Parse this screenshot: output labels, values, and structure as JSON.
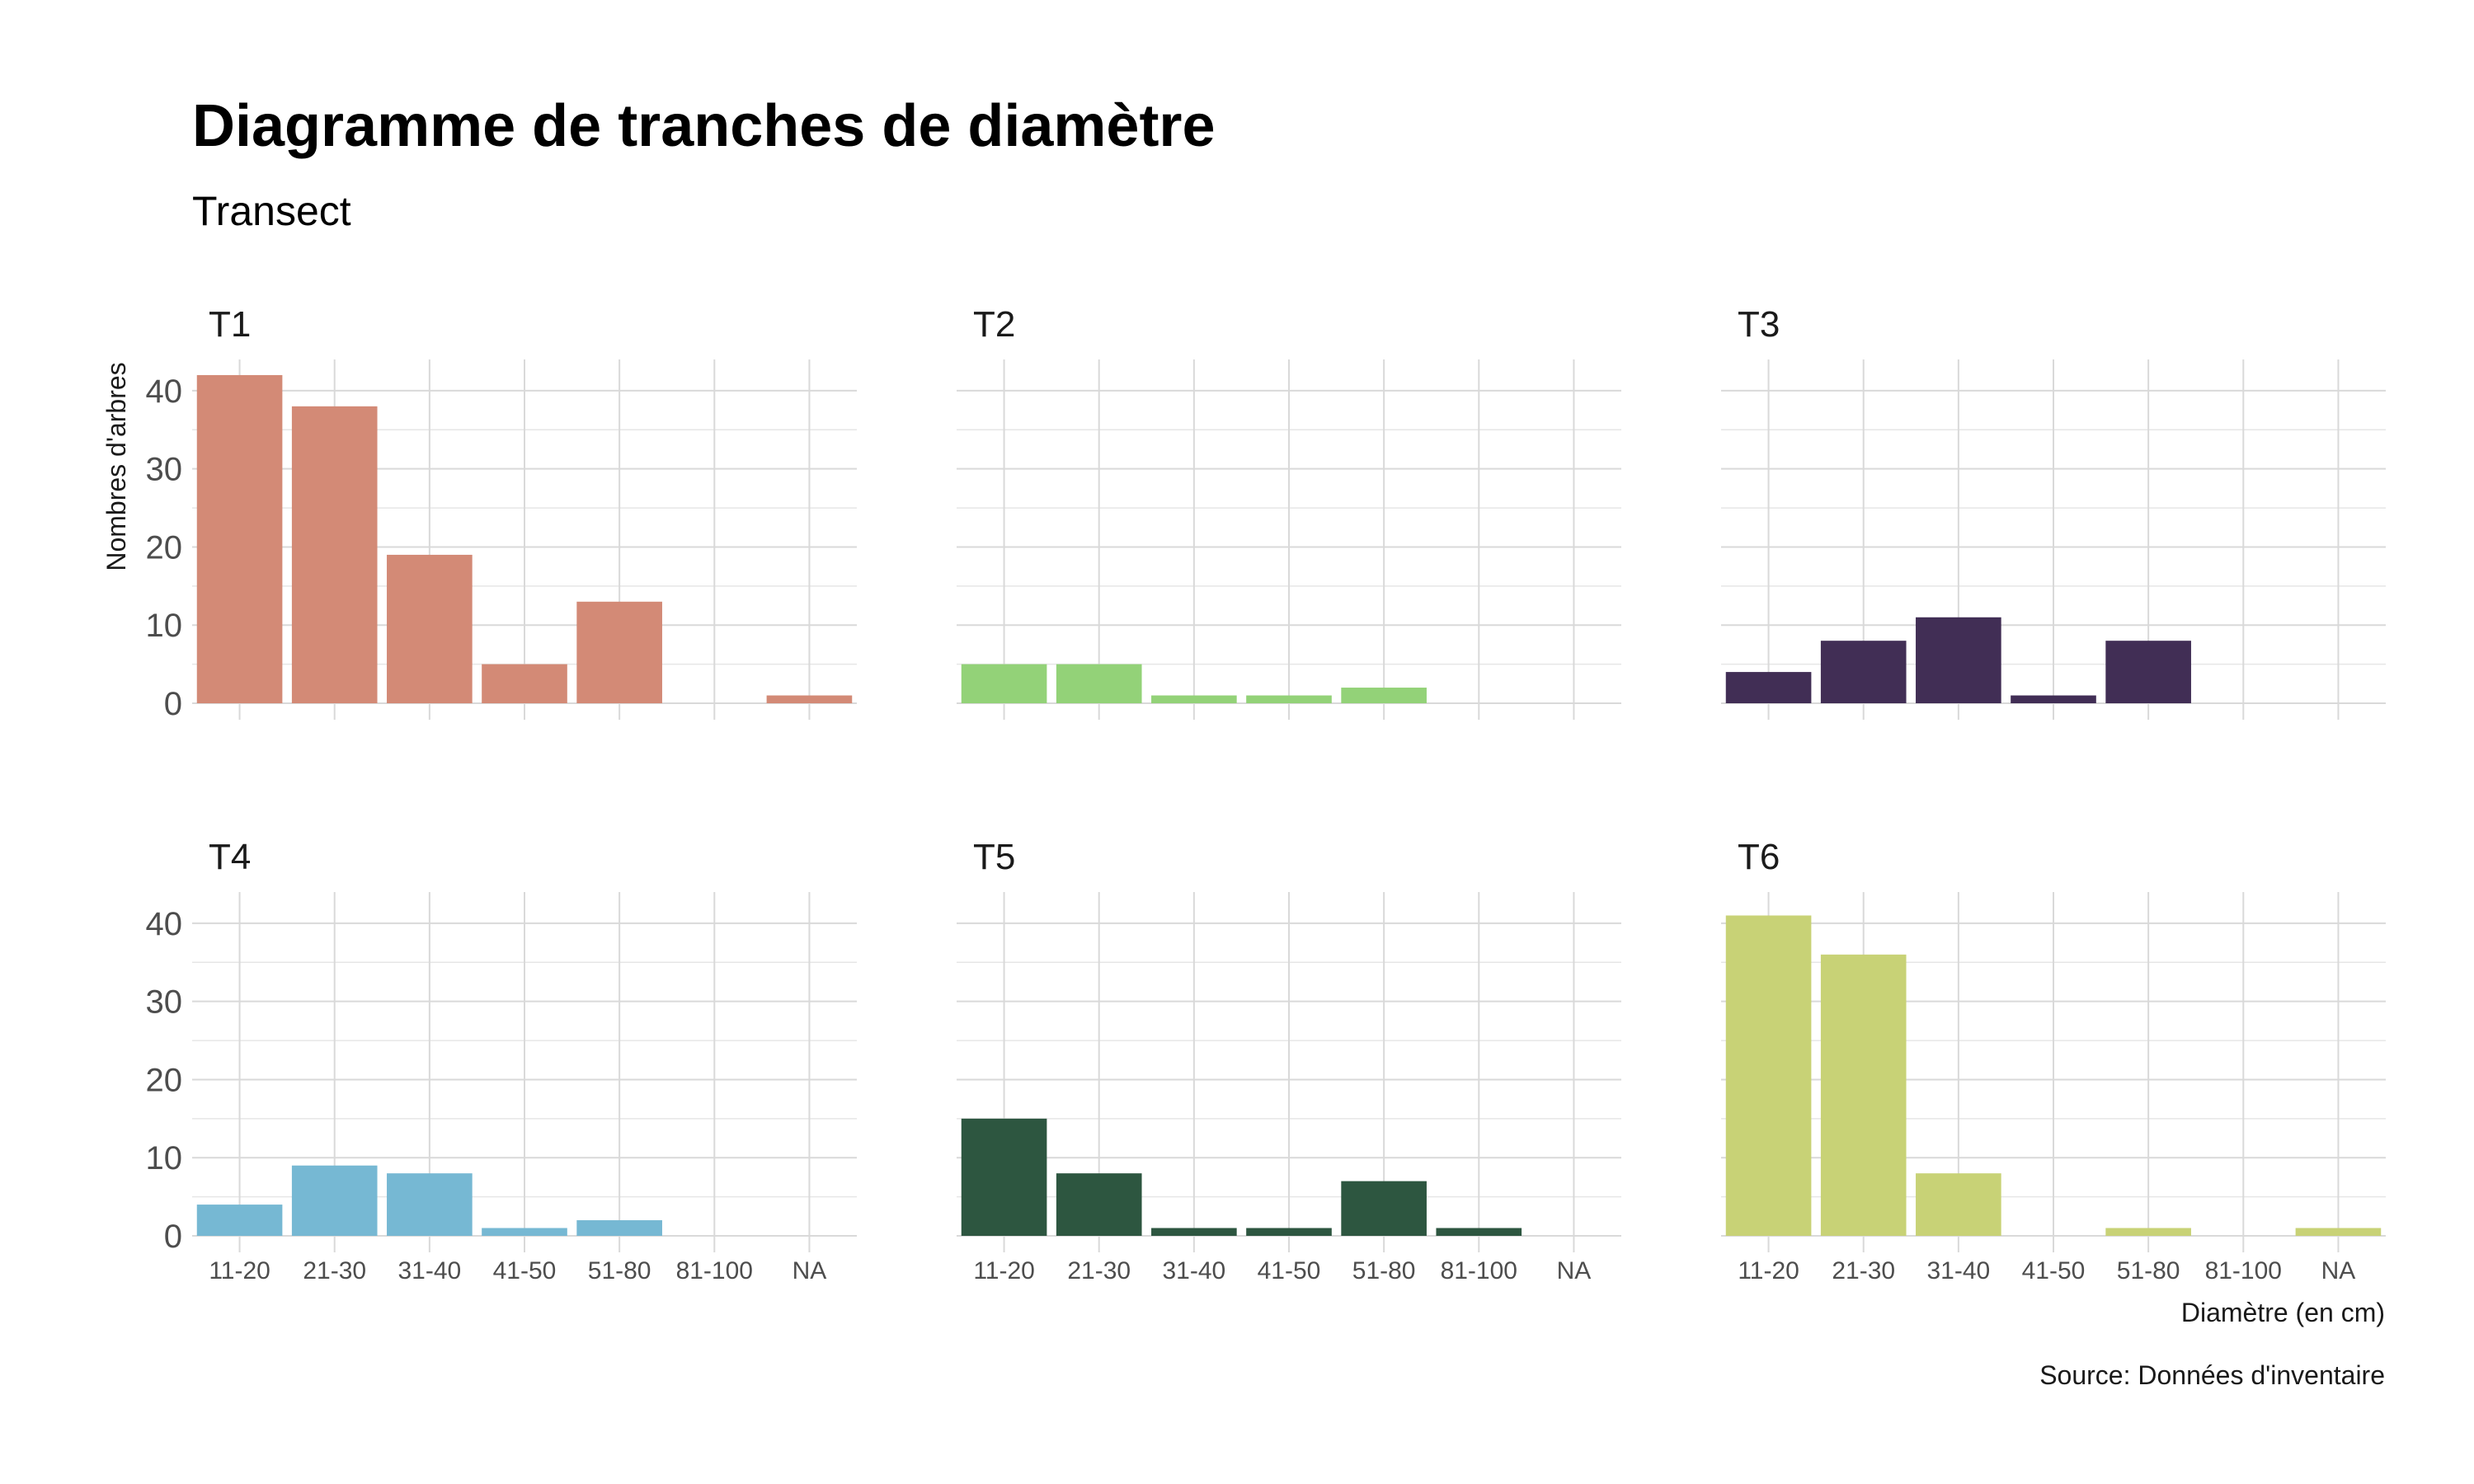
{
  "chart_data": {
    "type": "bar",
    "title": "Diagramme de tranches de diamètre",
    "subtitle": "Transect",
    "xlabel": "Diamètre (en cm)",
    "ylabel": "Nombres d'arbres",
    "caption": "Source: Données d'inventaire",
    "categories": [
      "11-20",
      "21-30",
      "31-40",
      "41-50",
      "51-80",
      "81-100",
      "NA"
    ],
    "ylim": [
      0,
      44
    ],
    "yticks": [
      0,
      10,
      20,
      30,
      40
    ],
    "grid": true,
    "facets": [
      {
        "name": "T1",
        "color": "#d38a76",
        "values": [
          42,
          38,
          19,
          5,
          13,
          0,
          1
        ]
      },
      {
        "name": "T2",
        "color": "#93d278",
        "values": [
          5,
          5,
          1,
          1,
          2,
          0,
          0
        ]
      },
      {
        "name": "T3",
        "color": "#412e55",
        "values": [
          4,
          8,
          11,
          1,
          8,
          0,
          0
        ]
      },
      {
        "name": "T4",
        "color": "#76b8d3",
        "values": [
          4,
          9,
          8,
          1,
          2,
          0,
          0
        ]
      },
      {
        "name": "T5",
        "color": "#2d5640",
        "values": [
          15,
          8,
          1,
          1,
          7,
          1,
          0
        ]
      },
      {
        "name": "T6",
        "color": "#c8d276",
        "values": [
          41,
          36,
          8,
          0,
          1,
          0,
          1
        ]
      }
    ]
  }
}
